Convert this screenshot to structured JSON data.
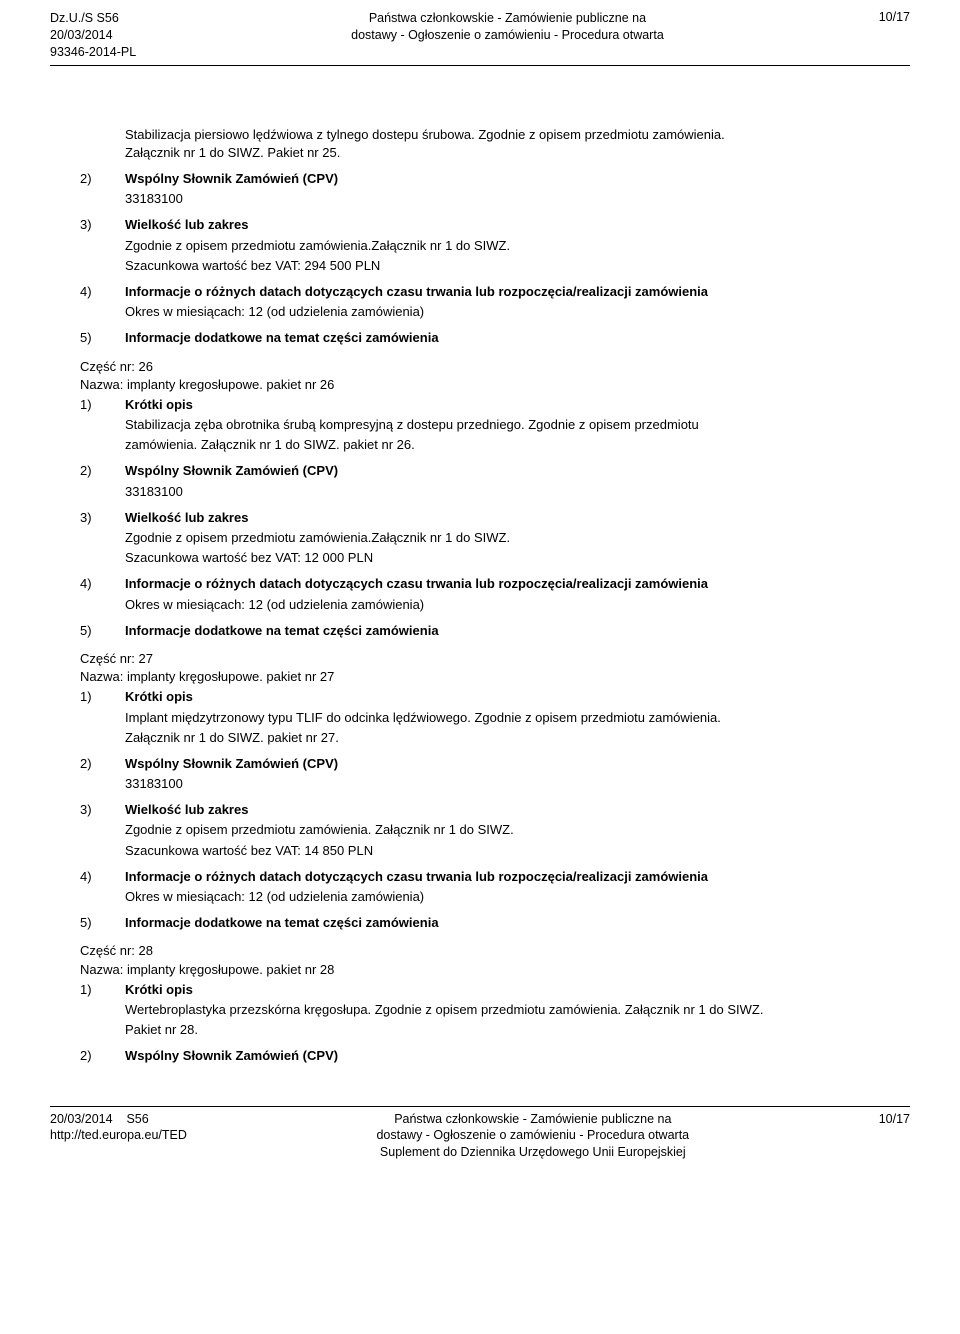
{
  "header": {
    "left_line1": "Dz.U./S S56",
    "left_line2": "20/03/2014",
    "left_line3": "93346-2014-PL",
    "center_line1": "Państwa członkowskie - Zamówienie publiczne na",
    "center_line2": "dostawy - Ogłoszenie o zamówieniu - Procedura otwarta",
    "right": "10/17"
  },
  "intro": {
    "line1": "Stabilizacja piersiowo lędźwiowa z tylnego dostepu śrubowa. Zgodnie z opisem przedmiotu zamówienia.",
    "line2": "Załącznik nr 1 do SIWZ. Pakiet nr 25."
  },
  "items": [
    {
      "num": "2)",
      "title": "Wspólny Słownik Zamówień (CPV)",
      "lines": [
        "33183100"
      ]
    },
    {
      "num": "3)",
      "title": "Wielkość lub zakres",
      "lines": [
        "Zgodnie z opisem przedmiotu zamówienia.Załącznik nr 1 do SIWZ.",
        "Szacunkowa wartość bez VAT: 294 500 PLN"
      ]
    },
    {
      "num": "4)",
      "title": "Informacje o różnych datach dotyczących czasu trwania lub rozpoczęcia/realizacji zamówienia",
      "lines": [
        "Okres w miesiącach: 12 (od udzielenia zamówienia)"
      ]
    },
    {
      "num": "5)",
      "title": "Informacje dodatkowe na temat części zamówienia",
      "lines": []
    }
  ],
  "part26": {
    "header1": "Część nr: 26",
    "header2": "Nazwa: implanty kregosłupowe. pakiet nr 26",
    "items": [
      {
        "num": "1)",
        "title": "Krótki opis",
        "lines": [
          "Stabilizacja zęba obrotnika śrubą kompresyjną z dostepu przedniego. Zgodnie z opisem przedmiotu",
          "zamówienia. Załącznik nr 1 do SIWZ. pakiet nr 26."
        ]
      },
      {
        "num": "2)",
        "title": "Wspólny Słownik Zamówień (CPV)",
        "lines": [
          "33183100"
        ]
      },
      {
        "num": "3)",
        "title": "Wielkość lub zakres",
        "lines": [
          "Zgodnie z opisem przedmiotu zamówienia.Załącznik nr 1 do SIWZ.",
          "Szacunkowa wartość bez VAT: 12 000 PLN"
        ]
      },
      {
        "num": "4)",
        "title": "Informacje o różnych datach dotyczących czasu trwania lub rozpoczęcia/realizacji zamówienia",
        "lines": [
          "Okres w miesiącach: 12 (od udzielenia zamówienia)"
        ]
      },
      {
        "num": "5)",
        "title": "Informacje dodatkowe na temat części zamówienia",
        "lines": []
      }
    ]
  },
  "part27": {
    "header1": "Część nr: 27",
    "header2": "Nazwa: implanty kręgosłupowe. pakiet nr 27",
    "items": [
      {
        "num": "1)",
        "title": "Krótki opis",
        "lines": [
          "Implant międzytrzonowy typu TLIF do odcinka lędźwiowego. Zgodnie z opisem przedmiotu zamówienia.",
          "Załącznik nr 1 do SIWZ. pakiet nr 27."
        ]
      },
      {
        "num": "2)",
        "title": "Wspólny Słownik Zamówień (CPV)",
        "lines": [
          "33183100"
        ]
      },
      {
        "num": "3)",
        "title": "Wielkość lub zakres",
        "lines": [
          "Zgodnie z opisem przedmiotu zamówienia. Załącznik nr 1 do SIWZ.",
          "Szacunkowa wartość bez VAT: 14 850 PLN"
        ]
      },
      {
        "num": "4)",
        "title": "Informacje o różnych datach dotyczących czasu trwania lub rozpoczęcia/realizacji zamówienia",
        "lines": [
          "Okres w miesiącach: 12 (od udzielenia zamówienia)"
        ]
      },
      {
        "num": "5)",
        "title": "Informacje dodatkowe na temat części zamówienia",
        "lines": []
      }
    ]
  },
  "part28": {
    "header1": "Część nr: 28",
    "header2": "Nazwa: implanty kręgosłupowe. pakiet nr 28",
    "items": [
      {
        "num": "1)",
        "title": "Krótki opis",
        "lines": [
          "Wertebroplastyka przezskórna kręgosłupa. Zgodnie z opisem przedmiotu zamówienia. Załącznik nr 1 do SIWZ.",
          "Pakiet nr 28."
        ]
      },
      {
        "num": "2)",
        "title": "Wspólny Słownik Zamówień (CPV)",
        "lines": []
      }
    ]
  },
  "footer": {
    "left_line1": "20/03/2014",
    "left_line1b": "S56",
    "left_line2": "http://ted.europa.eu/TED",
    "center_line1": "Państwa członkowskie - Zamówienie publiczne na",
    "center_line2": "dostawy - Ogłoszenie o zamówieniu - Procedura otwarta",
    "center_line3": "Suplement do Dziennika Urzędowego Unii Europejskiej",
    "right": "10/17"
  }
}
